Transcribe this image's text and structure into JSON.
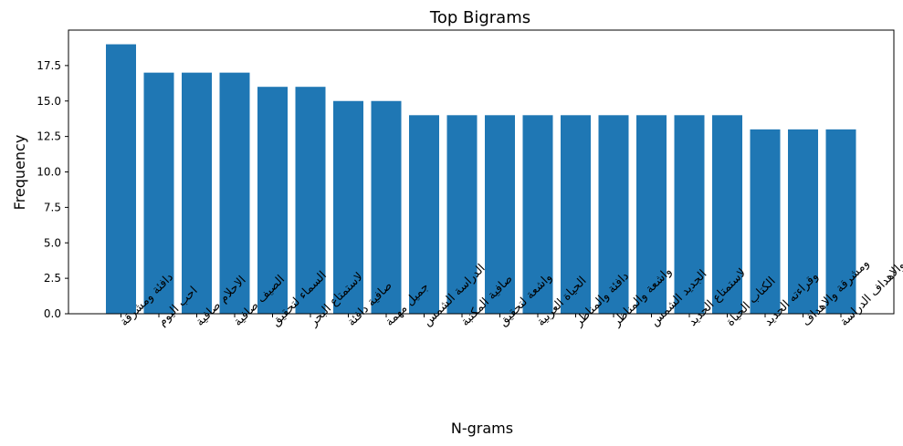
{
  "chart_data": {
    "type": "bar",
    "title": "Top Bigrams",
    "xlabel": "N-grams",
    "ylabel": "Frequency",
    "ylim": [
      0,
      20
    ],
    "yticks": [
      "0.0",
      "2.5",
      "5.0",
      "7.5",
      "10.0",
      "12.5",
      "15.0",
      "17.5"
    ],
    "categories": [
      "دافئة ومشرقة",
      "احب اليوم",
      "الاحلام صافية",
      "الصيف صافية",
      "السماء لتحقيق",
      "لاستمتاع البحر",
      "صافية دافئة",
      "جميل مهمة",
      "الدراسة الشمس",
      "صافية المكتبة",
      "واشعة لتحقيق",
      "الحياة العربية",
      "دافئة والمناظر",
      "واشعة والمناظر",
      "الجديد الشمس",
      "لاستمتاع الجديد",
      "الكتاب الحياة",
      "وقراءته الجديد",
      "ومشرقة والاهداف",
      "والاهداف الدراسة"
    ],
    "values": [
      19,
      17,
      17,
      17,
      16,
      16,
      15,
      15,
      14,
      14,
      14,
      14,
      14,
      14,
      14,
      14,
      14,
      13,
      13,
      13
    ],
    "bar_color": "#1f77b4",
    "grid": false,
    "legend": "none"
  }
}
